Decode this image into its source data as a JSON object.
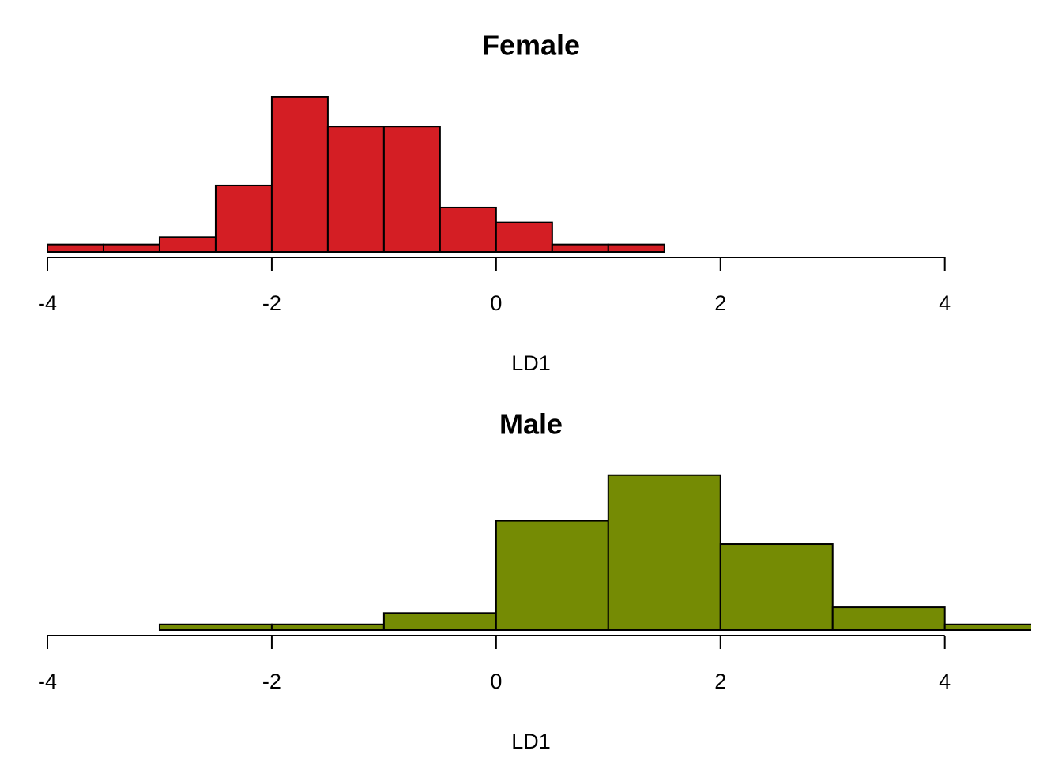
{
  "chart_data": [
    {
      "type": "histogram",
      "title": "Female",
      "xlabel": "LD1",
      "color": "#d41e24",
      "bins": [
        -4,
        -3.5,
        -3,
        -2.5,
        -2,
        -1.5,
        -1,
        -0.5,
        0,
        0.5,
        1,
        1.5
      ],
      "values": [
        0.025,
        0.025,
        0.05,
        0.225,
        0.525,
        0.425,
        0.425,
        0.15,
        0.1,
        0.025,
        0.025
      ],
      "xlim": [
        -4,
        4.77
      ],
      "ylim": [
        0,
        0.546
      ],
      "xticks": [
        -4,
        -2,
        0,
        2,
        4
      ]
    },
    {
      "type": "histogram",
      "title": "Male",
      "xlabel": "LD1",
      "color": "#758b04",
      "bins": [
        -3,
        -2,
        -1,
        0,
        1,
        2,
        3,
        4,
        5
      ],
      "values": [
        0.014,
        0.014,
        0.042,
        0.268,
        0.38,
        0.211,
        0.056,
        0.014
      ],
      "xlim": [
        -4,
        4.77
      ],
      "ylim": [
        0,
        0.395
      ],
      "xticks": [
        -4,
        -2,
        0,
        2,
        4
      ]
    }
  ]
}
